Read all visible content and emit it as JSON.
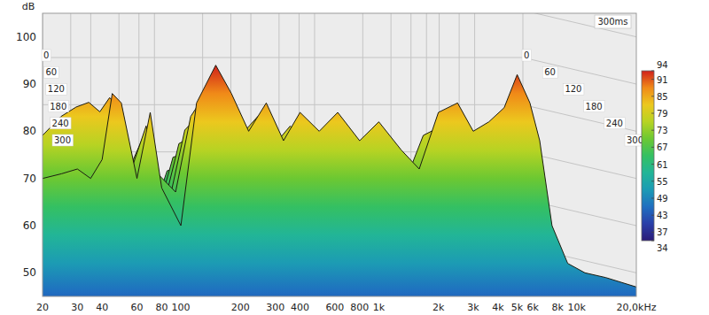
{
  "chart_data": {
    "type": "waterfall",
    "y_label": "dB",
    "log": "x",
    "grid": true,
    "xlim": [
      20,
      20000
    ],
    "xticks": [
      20,
      30,
      40,
      60,
      80,
      100,
      200,
      300,
      400,
      600,
      800,
      {
        "value": 1000,
        "label": "1k"
      },
      {
        "value": 2000,
        "label": "2k"
      },
      {
        "value": 3000,
        "label": "3k"
      },
      {
        "value": 4000,
        "label": "4k"
      },
      {
        "value": 5000,
        "label": "5k"
      },
      {
        "value": 6000,
        "label": "6k"
      },
      {
        "value": 8000,
        "label": "8k"
      },
      {
        "value": 10000,
        "label": "10k"
      },
      {
        "value": 20000,
        "label": "20,0kHz"
      }
    ],
    "ylim": [
      45,
      105
    ],
    "yticks": [
      50,
      60,
      70,
      80,
      90,
      100
    ],
    "zlim": [
      0,
      300
    ],
    "zticks": [
      0,
      60,
      120,
      180,
      240,
      300
    ],
    "z_label": "300ms",
    "x": [
      20,
      25,
      30,
      35,
      40,
      45,
      50,
      60,
      70,
      80,
      100,
      120,
      150,
      180,
      220,
      270,
      330,
      400,
      500,
      620,
      800,
      1000,
      1300,
      1600,
      2000,
      2500,
      3000,
      3600,
      4300,
      5000,
      5800,
      6500,
      7500,
      9000,
      11000,
      14000,
      20000
    ],
    "series": [
      {
        "time": 0,
        "values": [
          70,
          71,
          72,
          70,
          74,
          88,
          86,
          70,
          84,
          68,
          60,
          86,
          94,
          88,
          80,
          86,
          78,
          84,
          80,
          84,
          78,
          82,
          76,
          72,
          84,
          86,
          80,
          82,
          85,
          92,
          86,
          78,
          60,
          52,
          50,
          49,
          47
        ]
      },
      {
        "time": 60,
        "values": [
          78,
          82,
          84,
          85,
          83,
          86,
          84,
          72,
          80,
          70,
          66,
          82,
          88,
          84,
          78,
          82,
          76,
          80,
          76,
          80,
          74,
          76,
          70,
          68,
          78,
          80,
          74,
          76,
          78,
          82,
          78,
          70,
          56,
          50,
          48,
          47,
          46
        ]
      },
      {
        "time": 120,
        "values": [
          76,
          80,
          82,
          83,
          81,
          82,
          80,
          70,
          76,
          68,
          64,
          78,
          82,
          78,
          74,
          76,
          72,
          74,
          70,
          73,
          68,
          70,
          65,
          63,
          70,
          72,
          68,
          69,
          70,
          73,
          70,
          64,
          52,
          48,
          47,
          46,
          45
        ]
      },
      {
        "time": 180,
        "values": [
          74,
          78,
          80,
          81,
          79,
          78,
          76,
          68,
          72,
          66,
          62,
          74,
          76,
          72,
          70,
          71,
          67,
          68,
          65,
          67,
          63,
          64,
          60,
          58,
          64,
          66,
          62,
          63,
          64,
          66,
          64,
          58,
          50,
          47,
          46,
          45,
          45
        ]
      },
      {
        "time": 240,
        "values": [
          72,
          76,
          78,
          79,
          76,
          74,
          72,
          66,
          68,
          64,
          60,
          70,
          71,
          68,
          66,
          66,
          63,
          63,
          61,
          62,
          59,
          60,
          57,
          55,
          60,
          61,
          58,
          59,
          60,
          61,
          59,
          55,
          49,
          46,
          45,
          45,
          45
        ]
      },
      {
        "time": 300,
        "values": [
          70,
          74,
          76,
          77,
          74,
          71,
          69,
          64,
          65,
          62,
          58,
          66,
          67,
          64,
          63,
          62,
          60,
          60,
          58,
          59,
          56,
          57,
          54,
          53,
          57,
          58,
          55,
          56,
          57,
          58,
          56,
          53,
          48,
          46,
          45,
          45,
          45
        ]
      }
    ],
    "colorbar": {
      "range": [
        34,
        94
      ],
      "ticks": [
        34,
        37,
        43,
        49,
        55,
        61,
        67,
        73,
        79,
        85,
        91,
        94
      ]
    }
  }
}
